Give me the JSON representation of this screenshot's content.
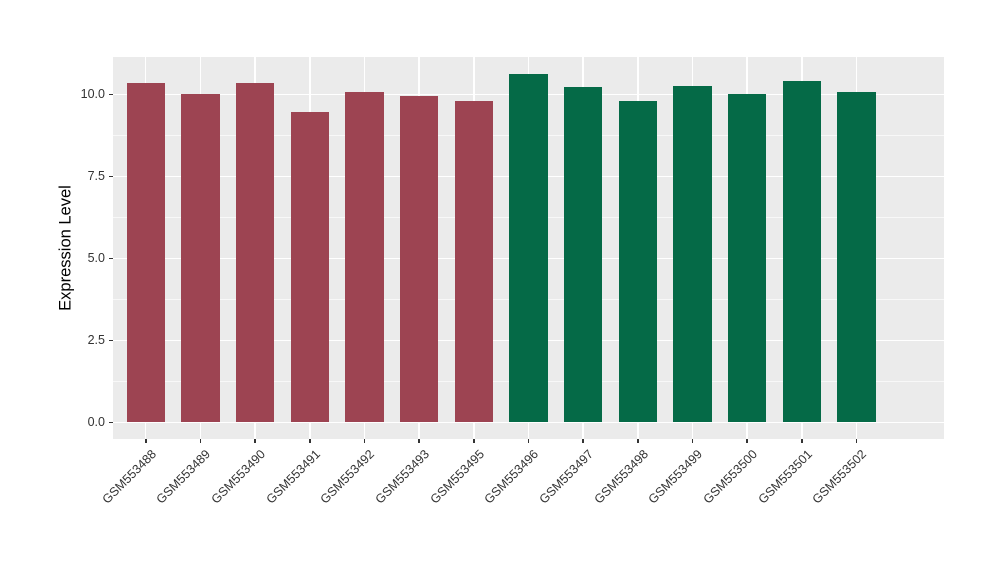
{
  "figure": {
    "background": "#ffffff"
  },
  "chart_data": {
    "type": "bar",
    "title": "",
    "xlabel": "",
    "ylabel": "Expression Level",
    "categories": [
      "GSM553488",
      "GSM553489",
      "GSM553490",
      "GSM553491",
      "GSM553492",
      "GSM553493",
      "GSM553495",
      "GSM553496",
      "GSM553497",
      "GSM553498",
      "GSM553499",
      "GSM553500",
      "GSM553501",
      "GSM553502"
    ],
    "values": [
      10.35,
      10.0,
      10.35,
      9.45,
      10.05,
      9.95,
      9.8,
      10.6,
      10.2,
      9.8,
      10.25,
      10.0,
      10.4,
      10.05
    ],
    "bar_groups": [
      0,
      0,
      0,
      0,
      0,
      0,
      0,
      1,
      1,
      1,
      1,
      1,
      1,
      1
    ],
    "group_colors": [
      "#9d4452",
      "#056a47"
    ],
    "yticks": [
      0.0,
      2.5,
      5.0,
      7.5,
      10.0
    ],
    "ytick_labels": [
      "0.0",
      "2.5",
      "5.0",
      "7.5",
      "10.0"
    ],
    "yticks_minor": [
      1.25,
      3.75,
      6.25,
      8.75
    ],
    "ylim": [
      -0.5,
      11.13
    ],
    "bar_width_fraction": 0.7,
    "x_label_angle": 45,
    "grid": "major+minor horizontal, major vertical at category centers",
    "legend": "none",
    "panel_background": "#ebebeb",
    "gridline_color": "#ffffff",
    "axis_text_color": "#333333"
  }
}
